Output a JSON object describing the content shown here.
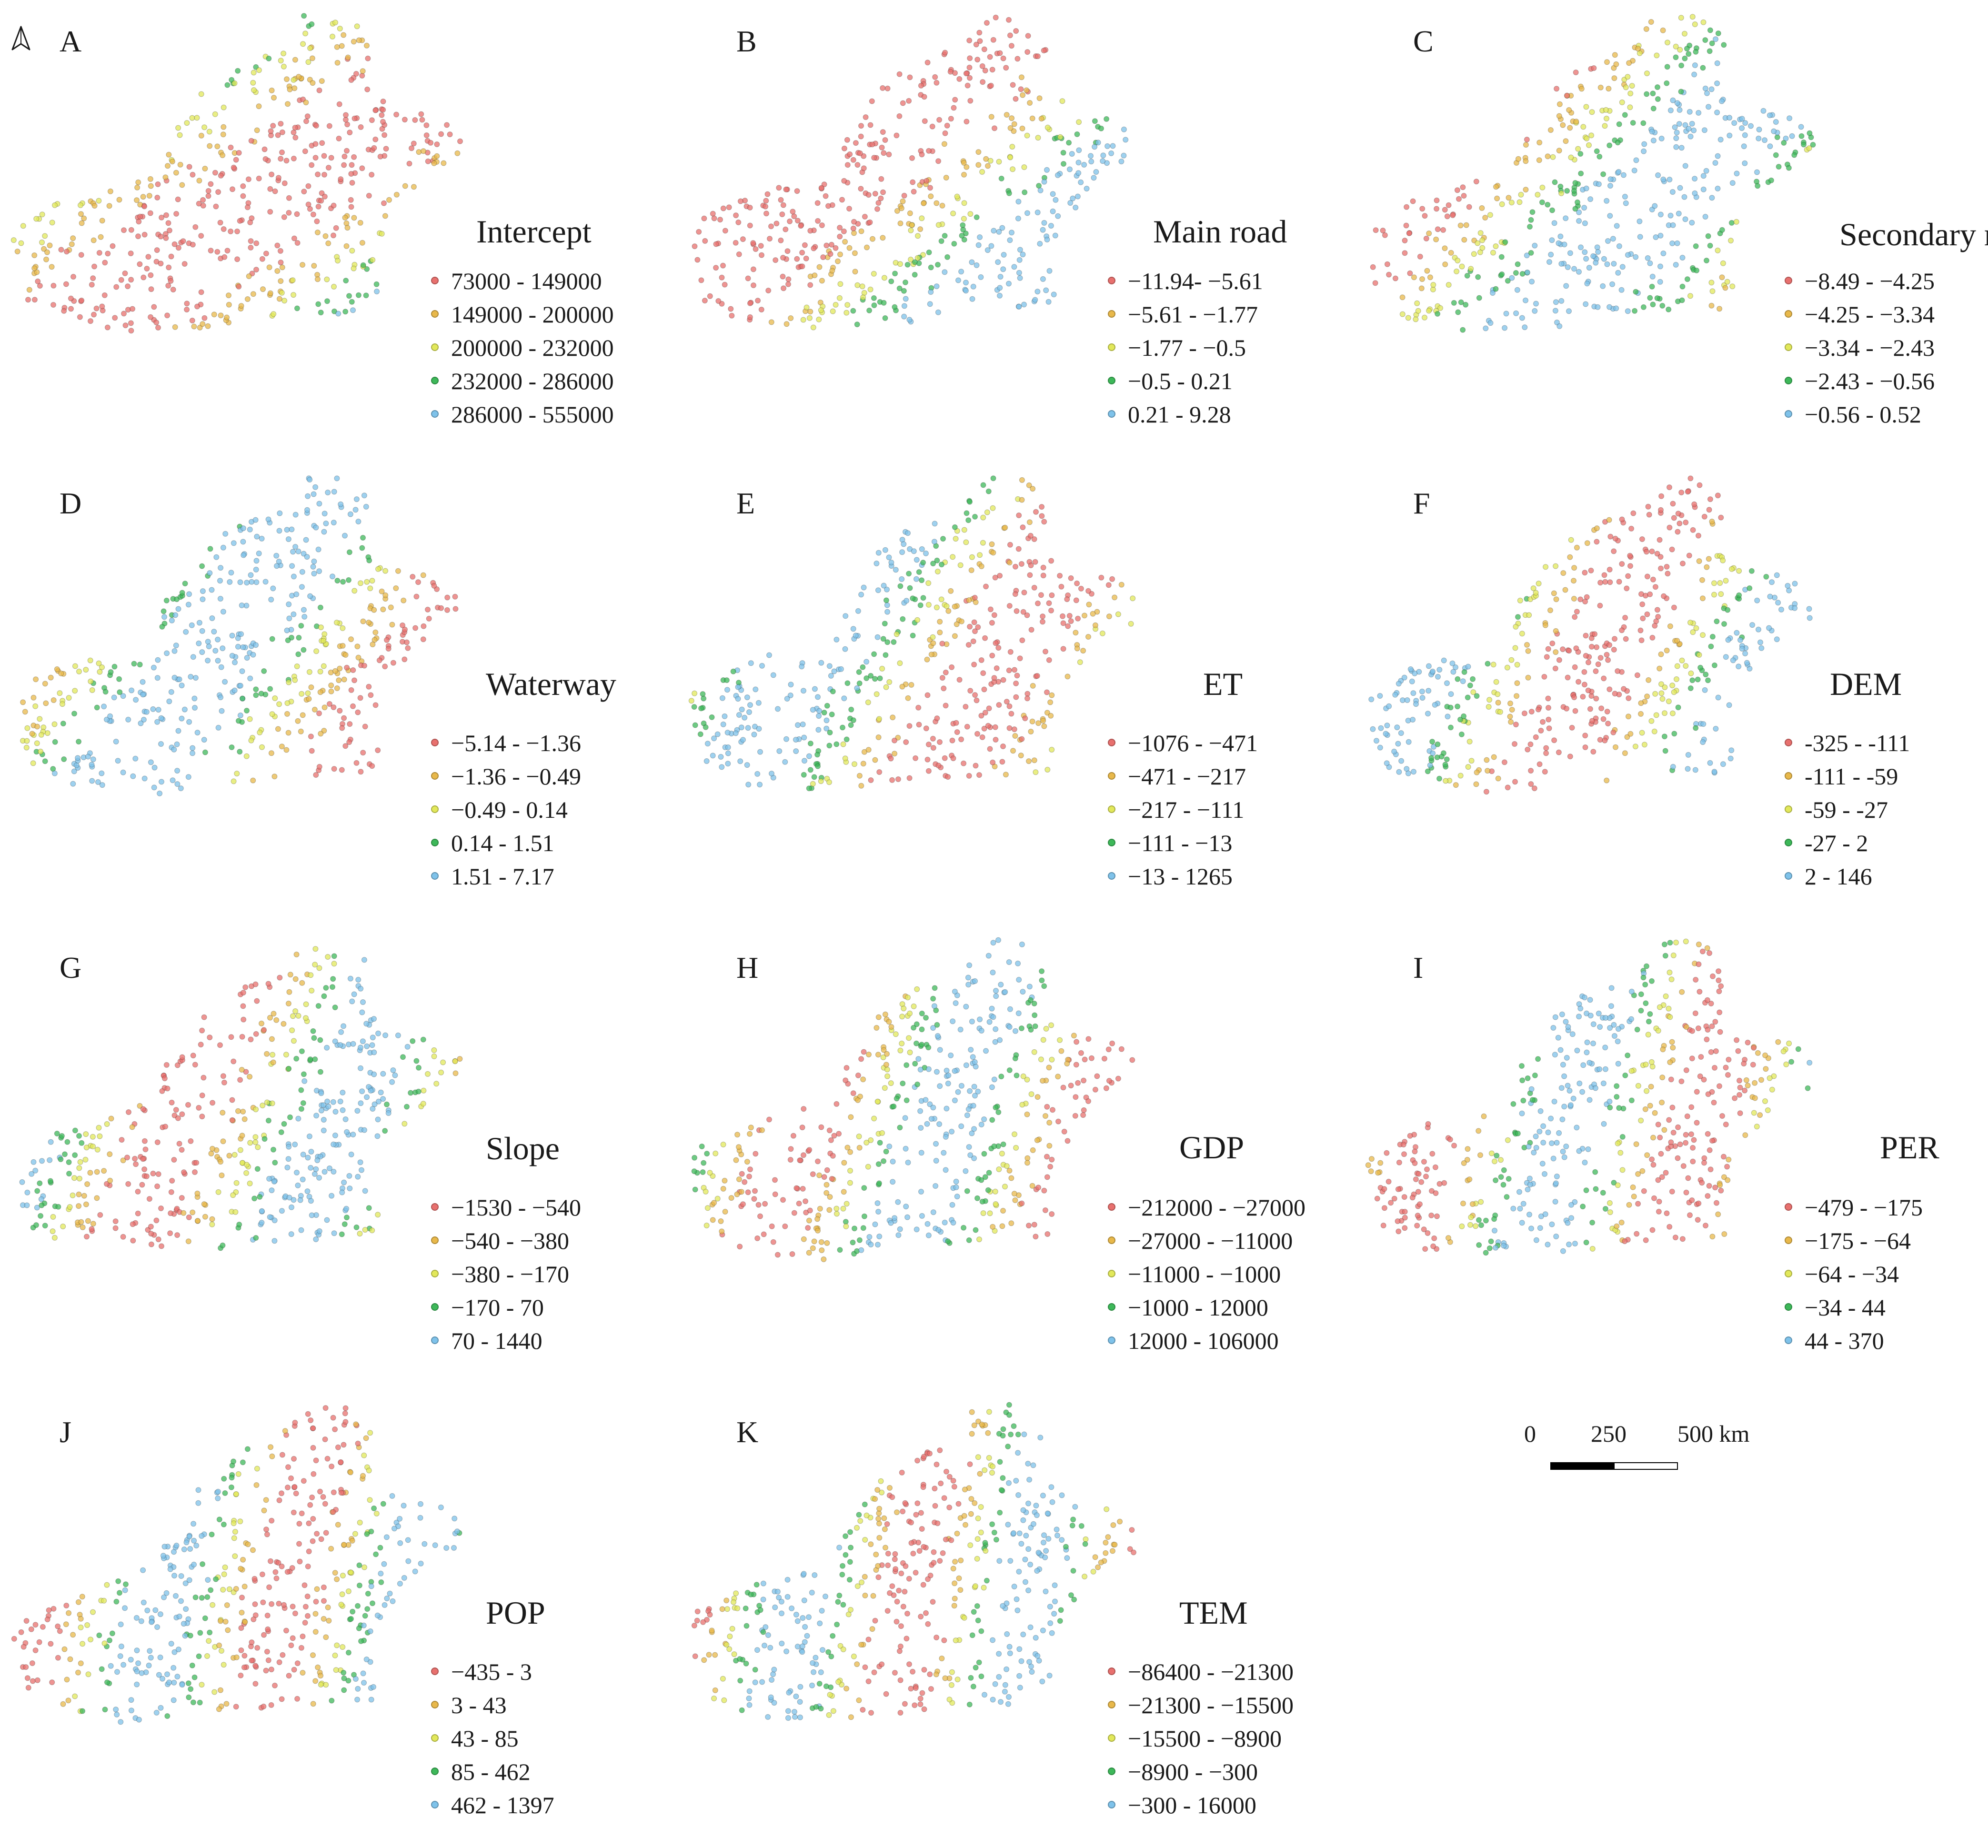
{
  "palette": [
    "#e8706e",
    "#e8b84a",
    "#e2e85a",
    "#3db859",
    "#7ec2ea"
  ],
  "north_arrow": {
    "icon": "north-arrow-icon"
  },
  "scale_bar": {
    "labels": [
      "0",
      "250",
      "500 km"
    ]
  },
  "panels": [
    {
      "letter": "A",
      "title": "Intercept",
      "legend": [
        "73000 - 149000",
        "149000 - 200000",
        "200000 - 232000",
        "232000 - 286000",
        "286000 - 555000"
      ]
    },
    {
      "letter": "B",
      "title": "Main road",
      "legend": [
        "−11.94- −5.61",
        "−5.61 - −1.77",
        "−1.77 - −0.5",
        "−0.5 - 0.21",
        "0.21 - 9.28"
      ]
    },
    {
      "letter": "C",
      "title": "Secondary road",
      "legend": [
        "−8.49 - −4.25",
        "−4.25 - −3.34",
        "−3.34 - −2.43",
        "−2.43 - −0.56",
        "−0.56 - 0.52"
      ]
    },
    {
      "letter": "D",
      "title": "Waterway",
      "legend": [
        "−5.14 - −1.36",
        "−1.36 - −0.49",
        "−0.49 - 0.14",
        "0.14 - 1.51",
        "1.51 - 7.17"
      ]
    },
    {
      "letter": "E",
      "title": "ET",
      "legend": [
        "−1076 - −471",
        "−471 - −217",
        "−217 - −111",
        "−111 - −13",
        "−13 - 1265"
      ]
    },
    {
      "letter": "F",
      "title": "DEM",
      "legend": [
        "-325 - -111",
        "-111 - -59",
        "-59 - -27",
        "-27 - 2",
        "2 - 146"
      ]
    },
    {
      "letter": "G",
      "title": "Slope",
      "legend": [
        "−1530 - −540",
        "−540 - −380",
        "−380 - −170",
        "−170 - 70",
        "70 - 1440"
      ]
    },
    {
      "letter": "H",
      "title": "GDP",
      "legend": [
        "−212000 - −27000",
        "−27000 - −11000",
        "−11000 - −1000",
        "−1000 - 12000",
        "12000 - 106000"
      ]
    },
    {
      "letter": "I",
      "title": "PER",
      "legend": [
        "−479 - −175",
        "−175 - −64",
        "−64 - −34",
        "−34 - 44",
        "44 - 370"
      ]
    },
    {
      "letter": "J",
      "title": "POP",
      "legend": [
        "−435 - 3",
        "3 - 43",
        "43 - 85",
        "85 - 462",
        "462 - 1397"
      ]
    },
    {
      "letter": "K",
      "title": "TEM",
      "legend": [
        "−86400 - −21300",
        "−21300 - −15500",
        "−15500 - −8900",
        "−8900 - −300",
        "−300 - 16000"
      ]
    }
  ]
}
